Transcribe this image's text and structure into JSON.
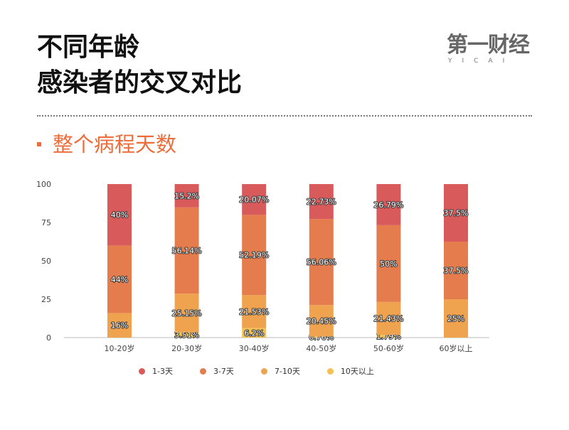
{
  "header": {
    "title_line1": "不同年龄",
    "title_line2": "感染者的交叉对比",
    "subtitle": "整个病程天数",
    "logo_main": "第一财经",
    "logo_sub": "YICAI"
  },
  "colors": {
    "accent": "#ed6d3a",
    "d1_3": "#d85a5b",
    "d3_7": "#e57c4d",
    "d7_10": "#f0a34f",
    "d10_plus": "#f3c251"
  },
  "chart_data": {
    "type": "bar",
    "stacked": true,
    "categories": [
      "10-20岁",
      "20-30岁",
      "30-40岁",
      "40-50岁",
      "50-60岁",
      "60岁以上"
    ],
    "series": [
      {
        "name": "10天以上",
        "color": "#f3c251",
        "values": [
          0,
          3.51,
          6.2,
          0.76,
          1.79,
          0
        ],
        "labels": [
          "",
          "3.51%",
          "6.2%",
          "0.76%",
          "1.79%",
          ""
        ]
      },
      {
        "name": "7-10天",
        "color": "#f0a34f",
        "values": [
          16,
          25.15,
          21.53,
          20.45,
          21.43,
          25
        ],
        "labels": [
          "16%",
          "25.15%",
          "21.53%",
          "20.45%",
          "21.43%",
          "25%"
        ]
      },
      {
        "name": "3-7天",
        "color": "#e57c4d",
        "values": [
          44,
          56.14,
          52.19,
          56.06,
          50,
          37.5
        ],
        "labels": [
          "44%",
          "56.14%",
          "52.19%",
          "56.06%",
          "50%",
          "37.5%"
        ]
      },
      {
        "name": "1-3天",
        "color": "#d85a5b",
        "values": [
          40,
          15.2,
          20.07,
          22.73,
          26.79,
          37.5
        ],
        "labels": [
          "40%",
          "15.2%",
          "20.07%",
          "22.73%",
          "26.79%",
          "37.5%"
        ]
      }
    ],
    "legend_order": [
      "1-3天",
      "3-7天",
      "7-10天",
      "10天以上"
    ],
    "ylim": [
      0,
      100
    ],
    "yticks": [
      "0",
      "25",
      "50",
      "75",
      "100"
    ],
    "grid": false,
    "legend_position": "bottom"
  }
}
